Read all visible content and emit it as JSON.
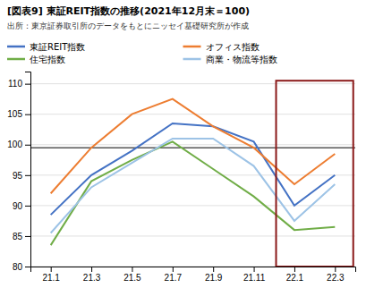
{
  "chart_data": {
    "type": "line",
    "title": "[図表9] 東証REIT指数の推移(2021年12月末＝100)",
    "subtitle": "出所：東京証券取引所のデータをもとにニッセイ基礎研究所が作成",
    "categories": [
      "21.1",
      "21.3",
      "21.5",
      "21.7",
      "21.9",
      "21.11",
      "22.1",
      "22.3"
    ],
    "series": [
      {
        "name": "東証REIT指数",
        "color": "#4472C4",
        "values": [
          88.5,
          95.0,
          99.0,
          103.5,
          103.0,
          100.5,
          90.0,
          95.0
        ]
      },
      {
        "name": "オフィス指数",
        "color": "#ED7D31",
        "values": [
          92.0,
          99.5,
          105.0,
          107.5,
          103.0,
          99.5,
          93.5,
          98.5
        ]
      },
      {
        "name": "住宅指数",
        "color": "#70AD47",
        "values": [
          83.5,
          94.0,
          97.5,
          100.5,
          96.0,
          91.5,
          86.0,
          86.5
        ]
      },
      {
        "name": "商業・物流等指数",
        "color": "#9DC3E6",
        "values": [
          85.5,
          93.0,
          97.0,
          101.0,
          101.0,
          96.5,
          87.5,
          93.5
        ]
      }
    ],
    "ylim": [
      80,
      112
    ],
    "yticks": [
      80,
      85,
      90,
      95,
      100,
      105,
      110
    ],
    "grid": true,
    "legend": "top",
    "hline": 99.5,
    "highlight": {
      "x": [
        5.55,
        7.45
      ],
      "y": [
        80,
        110.5
      ],
      "color": "#8B1A1A"
    }
  }
}
